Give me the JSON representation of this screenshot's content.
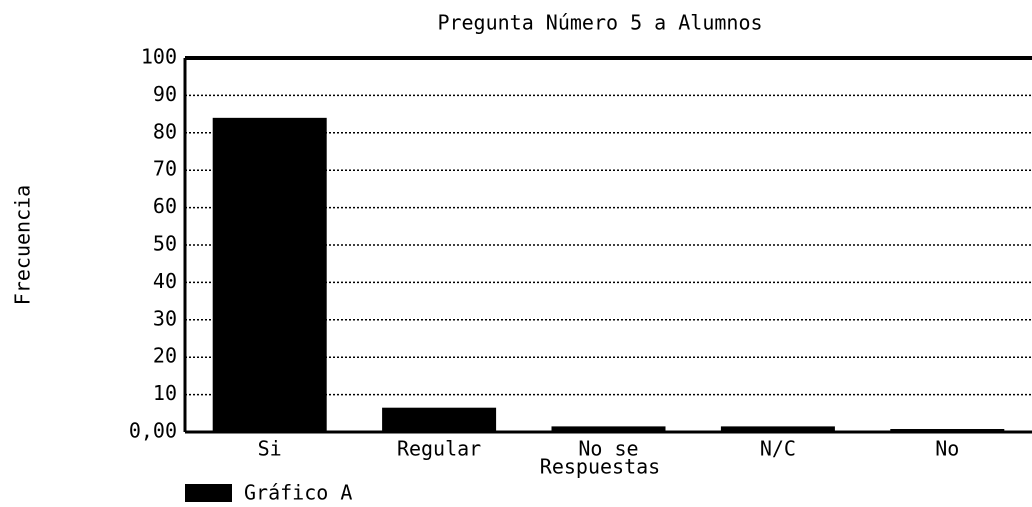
{
  "chart_data": {
    "type": "bar",
    "title": "Pregunta Número 5 a Alumnos",
    "x_label": "Respuestas",
    "y_label": "Frecuencia",
    "categories": [
      "Si",
      "Regular",
      "No se",
      "N/C",
      "No"
    ],
    "series": [
      {
        "name": "Gráfico A",
        "color": "#000000",
        "values": [
          84,
          6.5,
          1.5,
          1.5,
          0.8
        ]
      }
    ],
    "ylim": [
      0,
      100
    ],
    "yticks": [
      {
        "value": 0,
        "label": "0,00"
      },
      10,
      20,
      30,
      40,
      50,
      60,
      70,
      80,
      90,
      100
    ],
    "grid": true,
    "legend": "bottom-left"
  }
}
